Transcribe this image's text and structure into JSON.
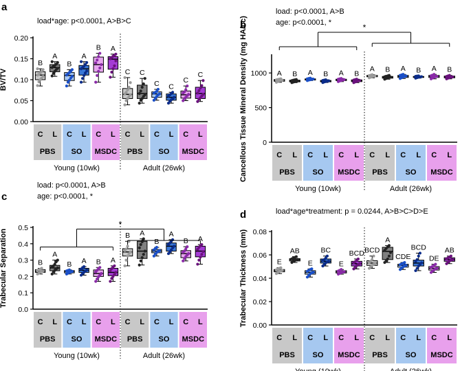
{
  "chart_data": [
    {
      "panel": "a",
      "type": "boxplot",
      "ylabel": "BV/TV",
      "ylim": [
        0,
        0.2
      ],
      "yticks": [
        "0.00",
        "0.05",
        "0.10",
        "0.15",
        "0.20"
      ],
      "stat_text": [
        "load*age: p<0.0001, A>B>C"
      ],
      "groups": [
        {
          "q1": 0.1,
          "med": 0.111,
          "q3": 0.119,
          "min": 0.085,
          "max": 0.126,
          "letter": "B",
          "pts": [
            0.086,
            0.095,
            0.1,
            0.104,
            0.108,
            0.111,
            0.113,
            0.116,
            0.12,
            0.124,
            0.126
          ]
        },
        {
          "q1": 0.119,
          "med": 0.129,
          "q3": 0.136,
          "min": 0.108,
          "max": 0.143,
          "letter": "A",
          "pts": [
            0.109,
            0.115,
            0.12,
            0.124,
            0.127,
            0.129,
            0.132,
            0.134,
            0.137,
            0.141,
            0.143
          ]
        },
        {
          "q1": 0.098,
          "med": 0.11,
          "q3": 0.117,
          "min": 0.085,
          "max": 0.124,
          "letter": "B",
          "pts": [
            0.085,
            0.094,
            0.099,
            0.104,
            0.108,
            0.111,
            0.114,
            0.117,
            0.12,
            0.124
          ]
        },
        {
          "q1": 0.111,
          "med": 0.126,
          "q3": 0.134,
          "min": 0.094,
          "max": 0.143,
          "letter": "A",
          "pts": [
            0.094,
            0.103,
            0.11,
            0.116,
            0.121,
            0.126,
            0.129,
            0.132,
            0.136,
            0.141,
            0.143
          ]
        },
        {
          "q1": 0.118,
          "med": 0.136,
          "q3": 0.154,
          "min": 0.094,
          "max": 0.163,
          "letter": "B",
          "pts": [
            0.094,
            0.11,
            0.12,
            0.128,
            0.136,
            0.14,
            0.147,
            0.155,
            0.163
          ]
        },
        {
          "q1": 0.125,
          "med": 0.149,
          "q3": 0.155,
          "min": 0.106,
          "max": 0.161,
          "letter": "A",
          "pts": [
            0.106,
            0.118,
            0.126,
            0.133,
            0.145,
            0.15,
            0.153,
            0.156,
            0.158,
            0.161
          ]
        },
        {
          "q1": 0.055,
          "med": 0.065,
          "q3": 0.079,
          "min": 0.04,
          "max": 0.105,
          "letter": "C",
          "pts": [
            0.04,
            0.05,
            0.055,
            0.06,
            0.064,
            0.066,
            0.07,
            0.076,
            0.082,
            0.093,
            0.105
          ]
        },
        {
          "q1": 0.055,
          "med": 0.067,
          "q3": 0.087,
          "min": 0.044,
          "max": 0.103,
          "letter": "C",
          "pts": [
            0.044,
            0.051,
            0.055,
            0.06,
            0.064,
            0.067,
            0.073,
            0.082,
            0.09,
            0.103
          ]
        },
        {
          "q1": 0.058,
          "med": 0.066,
          "q3": 0.071,
          "min": 0.051,
          "max": 0.077,
          "letter": "C",
          "pts": [
            0.051,
            0.056,
            0.06,
            0.064,
            0.066,
            0.068,
            0.07,
            0.072,
            0.077
          ]
        },
        {
          "q1": 0.051,
          "med": 0.058,
          "q3": 0.066,
          "min": 0.044,
          "max": 0.07,
          "letter": "C",
          "pts": [
            0.044,
            0.049,
            0.052,
            0.055,
            0.058,
            0.061,
            0.064,
            0.067,
            0.07
          ]
        },
        {
          "q1": 0.056,
          "med": 0.064,
          "q3": 0.073,
          "min": 0.05,
          "max": 0.085,
          "letter": "C",
          "pts": [
            0.05,
            0.055,
            0.058,
            0.062,
            0.065,
            0.068,
            0.071,
            0.076,
            0.085
          ]
        },
        {
          "q1": 0.055,
          "med": 0.067,
          "q3": 0.082,
          "min": 0.048,
          "max": 0.098,
          "letter": "C",
          "pts": [
            0.048,
            0.053,
            0.057,
            0.061,
            0.065,
            0.068,
            0.074,
            0.08,
            0.086,
            0.098
          ]
        }
      ]
    },
    {
      "panel": "b",
      "type": "boxplot",
      "ylabel": "Cancellous Tissue Mineral Density (mg HA/cc)",
      "ylim": [
        0,
        1250
      ],
      "yticks": [
        "0",
        "500",
        "1000"
      ],
      "ytick_values": [
        0,
        500,
        1000
      ],
      "stat_text": [
        "load: p<0.0001, A>B",
        "age: p<0.0001, *"
      ],
      "sig_star": "*",
      "groups": [
        {
          "q1": 880,
          "med": 895,
          "q3": 905,
          "min": 865,
          "max": 915,
          "letter": "A",
          "pts": [
            865,
            878,
            885,
            890,
            895,
            900,
            905,
            910,
            915
          ]
        },
        {
          "q1": 872,
          "med": 885,
          "q3": 895,
          "min": 860,
          "max": 905,
          "letter": "B",
          "pts": [
            860,
            868,
            875,
            880,
            885,
            890,
            895,
            900,
            905
          ]
        },
        {
          "q1": 898,
          "med": 908,
          "q3": 915,
          "min": 890,
          "max": 925,
          "letter": "A",
          "pts": [
            890,
            898,
            903,
            908,
            912,
            915,
            920,
            925
          ]
        },
        {
          "q1": 872,
          "med": 882,
          "q3": 892,
          "min": 862,
          "max": 902,
          "letter": "B",
          "pts": [
            862,
            870,
            876,
            882,
            887,
            892,
            897,
            902
          ]
        },
        {
          "q1": 890,
          "med": 900,
          "q3": 910,
          "min": 875,
          "max": 920,
          "letter": "A",
          "pts": [
            875,
            885,
            892,
            898,
            904,
            910,
            915,
            920
          ]
        },
        {
          "q1": 875,
          "med": 888,
          "q3": 900,
          "min": 860,
          "max": 910,
          "letter": "B",
          "pts": [
            860,
            870,
            878,
            885,
            892,
            898,
            904,
            910
          ]
        },
        {
          "q1": 945,
          "med": 955,
          "q3": 965,
          "min": 930,
          "max": 975,
          "letter": "A",
          "pts": [
            930,
            940,
            948,
            953,
            957,
            962,
            968,
            975
          ]
        },
        {
          "q1": 925,
          "med": 938,
          "q3": 950,
          "min": 910,
          "max": 965,
          "letter": "B",
          "pts": [
            910,
            920,
            928,
            935,
            940,
            945,
            950,
            958,
            965
          ]
        },
        {
          "q1": 935,
          "med": 950,
          "q3": 965,
          "min": 920,
          "max": 980,
          "letter": "A",
          "pts": [
            920,
            932,
            942,
            950,
            957,
            965,
            972,
            980
          ]
        },
        {
          "q1": 935,
          "med": 943,
          "q3": 950,
          "min": 925,
          "max": 958,
          "letter": "B",
          "pts": [
            925,
            932,
            938,
            943,
            947,
            951,
            955,
            958
          ]
        },
        {
          "q1": 935,
          "med": 950,
          "q3": 965,
          "min": 915,
          "max": 980,
          "letter": "A",
          "pts": [
            915,
            928,
            938,
            946,
            952,
            960,
            968,
            980
          ]
        },
        {
          "q1": 930,
          "med": 942,
          "q3": 955,
          "min": 915,
          "max": 965,
          "letter": "B",
          "pts": [
            915,
            925,
            932,
            938,
            944,
            950,
            957,
            965
          ]
        }
      ]
    },
    {
      "panel": "c",
      "type": "boxplot",
      "ylabel": "Trabecular Separation",
      "ylim": [
        0,
        0.5
      ],
      "yticks": [
        "0.0",
        "0.1",
        "0.2",
        "0.3",
        "0.4",
        "0.5"
      ],
      "stat_text": [
        "load: p<0.0001, A>B",
        "age: p<0.0001, *"
      ],
      "sig_star": "*",
      "groups": [
        {
          "q1": 0.225,
          "med": 0.232,
          "q3": 0.242,
          "min": 0.215,
          "max": 0.25,
          "letter": "B",
          "pts": [
            0.215,
            0.22,
            0.226,
            0.23,
            0.233,
            0.237,
            0.241,
            0.245,
            0.25
          ]
        },
        {
          "q1": 0.235,
          "med": 0.252,
          "q3": 0.268,
          "min": 0.215,
          "max": 0.3,
          "letter": "A",
          "pts": [
            0.215,
            0.228,
            0.238,
            0.246,
            0.252,
            0.258,
            0.265,
            0.275,
            0.29,
            0.3
          ]
        },
        {
          "q1": 0.222,
          "med": 0.23,
          "q3": 0.236,
          "min": 0.215,
          "max": 0.24,
          "letter": "B",
          "pts": [
            0.215,
            0.22,
            0.224,
            0.228,
            0.231,
            0.234,
            0.237,
            0.24
          ]
        },
        {
          "q1": 0.225,
          "med": 0.238,
          "q3": 0.25,
          "min": 0.208,
          "max": 0.26,
          "letter": "A",
          "pts": [
            0.208,
            0.218,
            0.226,
            0.233,
            0.24,
            0.246,
            0.252,
            0.26
          ]
        },
        {
          "q1": 0.2,
          "med": 0.218,
          "q3": 0.24,
          "min": 0.17,
          "max": 0.255,
          "letter": "B",
          "pts": [
            0.17,
            0.185,
            0.198,
            0.208,
            0.218,
            0.228,
            0.238,
            0.248,
            0.255
          ]
        },
        {
          "q1": 0.205,
          "med": 0.225,
          "q3": 0.25,
          "min": 0.17,
          "max": 0.265,
          "letter": "A",
          "pts": [
            0.17,
            0.188,
            0.2,
            0.212,
            0.225,
            0.236,
            0.248,
            0.258,
            0.265
          ]
        },
        {
          "q1": 0.325,
          "med": 0.35,
          "q3": 0.37,
          "min": 0.265,
          "max": 0.415,
          "letter": "B",
          "pts": [
            0.265,
            0.3,
            0.325,
            0.34,
            0.35,
            0.358,
            0.368,
            0.385,
            0.415
          ]
        },
        {
          "q1": 0.31,
          "med": 0.355,
          "q3": 0.415,
          "min": 0.27,
          "max": 0.43,
          "letter": "A",
          "pts": [
            0.27,
            0.295,
            0.315,
            0.335,
            0.355,
            0.375,
            0.395,
            0.412,
            0.43
          ]
        },
        {
          "q1": 0.345,
          "med": 0.355,
          "q3": 0.365,
          "min": 0.325,
          "max": 0.378,
          "letter": "B",
          "pts": [
            0.325,
            0.338,
            0.347,
            0.353,
            0.358,
            0.363,
            0.37,
            0.378
          ]
        },
        {
          "q1": 0.355,
          "med": 0.385,
          "q3": 0.405,
          "min": 0.34,
          "max": 0.425,
          "letter": "A",
          "pts": [
            0.34,
            0.352,
            0.362,
            0.375,
            0.385,
            0.395,
            0.405,
            0.415,
            0.425
          ]
        },
        {
          "q1": 0.315,
          "med": 0.34,
          "q3": 0.358,
          "min": 0.295,
          "max": 0.382,
          "letter": "B",
          "pts": [
            0.295,
            0.31,
            0.322,
            0.332,
            0.34,
            0.348,
            0.356,
            0.368,
            0.382
          ]
        },
        {
          "q1": 0.32,
          "med": 0.355,
          "q3": 0.385,
          "min": 0.275,
          "max": 0.395,
          "letter": "A",
          "pts": [
            0.275,
            0.3,
            0.318,
            0.335,
            0.352,
            0.365,
            0.378,
            0.388,
            0.395
          ]
        }
      ]
    },
    {
      "panel": "d",
      "type": "boxplot",
      "ylabel": "Trabecular Thickness (mm)",
      "ylim": [
        0,
        0.08
      ],
      "yticks": [
        "0.00",
        "0.02",
        "0.04",
        "0.06",
        "0.08"
      ],
      "stat_text": [
        "load*age*treatment: p = 0.0244, A>B>C>D>E"
      ],
      "groups": [
        {
          "q1": 0.0455,
          "med": 0.0465,
          "q3": 0.0475,
          "min": 0.044,
          "max": 0.049,
          "letter": "E",
          "pts": [
            0.044,
            0.045,
            0.0458,
            0.0463,
            0.0467,
            0.0472,
            0.0478,
            0.0485,
            0.049
          ]
        },
        {
          "q1": 0.0548,
          "med": 0.056,
          "q3": 0.0568,
          "min": 0.0535,
          "max": 0.0585,
          "letter": "AB",
          "pts": [
            0.0535,
            0.0545,
            0.0552,
            0.0558,
            0.0562,
            0.0566,
            0.0572,
            0.0578,
            0.0585
          ]
        },
        {
          "q1": 0.0435,
          "med": 0.045,
          "q3": 0.0465,
          "min": 0.041,
          "max": 0.048,
          "letter": "E",
          "pts": [
            0.041,
            0.0425,
            0.0438,
            0.0446,
            0.0452,
            0.046,
            0.0468,
            0.0475,
            0.048
          ]
        },
        {
          "q1": 0.053,
          "med": 0.0545,
          "q3": 0.0565,
          "min": 0.0505,
          "max": 0.059,
          "letter": "BC",
          "pts": [
            0.0505,
            0.052,
            0.0532,
            0.054,
            0.0546,
            0.0552,
            0.056,
            0.0572,
            0.059
          ]
        },
        {
          "q1": 0.0445,
          "med": 0.0455,
          "q3": 0.0465,
          "min": 0.0435,
          "max": 0.0475,
          "letter": "E",
          "pts": [
            0.0435,
            0.0442,
            0.0448,
            0.0453,
            0.0457,
            0.0462,
            0.0468,
            0.0475
          ]
        },
        {
          "q1": 0.0505,
          "med": 0.0525,
          "q3": 0.0545,
          "min": 0.048,
          "max": 0.0565,
          "letter": "BCD",
          "pts": [
            0.048,
            0.0495,
            0.0508,
            0.0518,
            0.0526,
            0.0534,
            0.0542,
            0.0552,
            0.0565
          ]
        },
        {
          "q1": 0.051,
          "med": 0.053,
          "q3": 0.055,
          "min": 0.0485,
          "max": 0.059,
          "letter": "BCD",
          "pts": [
            0.0485,
            0.0498,
            0.051,
            0.052,
            0.0528,
            0.0536,
            0.0545,
            0.056,
            0.059
          ]
        },
        {
          "q1": 0.056,
          "med": 0.063,
          "q3": 0.0665,
          "min": 0.0535,
          "max": 0.068,
          "letter": "A",
          "pts": [
            0.0535,
            0.055,
            0.0565,
            0.059,
            0.062,
            0.064,
            0.0655,
            0.0668,
            0.068
          ]
        },
        {
          "q1": 0.0495,
          "med": 0.051,
          "q3": 0.052,
          "min": 0.0475,
          "max": 0.0535,
          "letter": "CDE",
          "pts": [
            0.0475,
            0.0488,
            0.0498,
            0.0505,
            0.0511,
            0.0516,
            0.0522,
            0.0528,
            0.0535
          ]
        },
        {
          "q1": 0.0505,
          "med": 0.053,
          "q3": 0.0555,
          "min": 0.0465,
          "max": 0.0615,
          "letter": "BCD",
          "pts": [
            0.0465,
            0.0485,
            0.0505,
            0.052,
            0.0532,
            0.0545,
            0.056,
            0.059,
            0.0615
          ]
        },
        {
          "q1": 0.047,
          "med": 0.0485,
          "q3": 0.05,
          "min": 0.045,
          "max": 0.052,
          "letter": "DE",
          "pts": [
            0.045,
            0.0462,
            0.0472,
            0.048,
            0.0487,
            0.0494,
            0.0502,
            0.051,
            0.052
          ]
        },
        {
          "q1": 0.0545,
          "med": 0.056,
          "q3": 0.0575,
          "min": 0.0525,
          "max": 0.059,
          "letter": "AB",
          "pts": [
            0.0525,
            0.0538,
            0.0548,
            0.0555,
            0.0561,
            0.0567,
            0.0574,
            0.0582,
            0.059
          ]
        }
      ]
    }
  ],
  "load_labels": [
    "C",
    "L"
  ],
  "treatments": [
    "PBS",
    "SO",
    "MSDC"
  ],
  "ages": [
    "Young (10wk)",
    "Adult (26wk)"
  ],
  "colors": {
    "pbs_band": "#c8c8c8",
    "so_band": "#a6c8f0",
    "msdc_band": "#e8a0ec",
    "pbs_c": "#c8c8c8",
    "pbs_l": "#808080",
    "so_c": "#a8c8f0",
    "so_l": "#3a78d8",
    "msdc_c": "#e6a6ee",
    "msdc_l": "#a43cd4",
    "pbs_c_dot": "#9a9a9a",
    "pbs_l_dot": "#222222",
    "so_c_dot": "#1a4fc8",
    "so_l_dot": "#0b2c8a",
    "msdc_c_dot": "#8a2aa8",
    "msdc_l_dot": "#6a127c"
  }
}
